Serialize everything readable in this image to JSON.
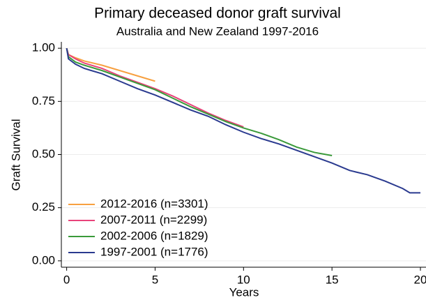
{
  "chart_data": {
    "type": "line",
    "title": "Primary deceased donor graft survival",
    "subtitle": "Australia and New Zealand 1997-2016",
    "x_label": "Years",
    "y_label": "Graft Survival",
    "xlim": [
      -0.3,
      20
    ],
    "xticks": [
      0,
      5,
      10,
      15,
      20
    ],
    "ylim": [
      -0.03,
      1.03
    ],
    "yticks": [
      {
        "value": 0,
        "label": "0.00"
      },
      {
        "value": 0.25,
        "label": "0.25"
      },
      {
        "value": 0.5,
        "label": "0.50"
      },
      {
        "value": 0.75,
        "label": "0.75"
      },
      {
        "value": 1,
        "label": "1.00"
      }
    ],
    "grid": true,
    "legend": "lower left",
    "series": [
      {
        "name": "2012-2016 (n=3301)",
        "color": "#f7a040",
        "x": [
          0,
          0.1,
          0.5,
          1,
          2,
          3,
          4,
          5
        ],
        "values": [
          1,
          0.97,
          0.955,
          0.94,
          0.92,
          0.895,
          0.87,
          0.845
        ]
      },
      {
        "name": "2007-2011 (n=2299)",
        "color": "#e8437a",
        "x": [
          0,
          0.1,
          0.5,
          1,
          2,
          3,
          4,
          5,
          6,
          7,
          8,
          9,
          10
        ],
        "values": [
          1,
          0.97,
          0.95,
          0.93,
          0.905,
          0.87,
          0.84,
          0.81,
          0.775,
          0.735,
          0.695,
          0.66,
          0.63
        ]
      },
      {
        "name": "2002-2006 (n=1829)",
        "color": "#3a9a3a",
        "x": [
          0,
          0.1,
          0.5,
          1,
          2,
          3,
          4,
          5,
          6,
          7,
          8,
          9,
          10,
          11,
          12,
          13,
          14,
          15
        ],
        "values": [
          1,
          0.96,
          0.935,
          0.92,
          0.895,
          0.865,
          0.835,
          0.805,
          0.765,
          0.725,
          0.69,
          0.655,
          0.625,
          0.6,
          0.57,
          0.535,
          0.51,
          0.495
        ]
      },
      {
        "name": "1997-2001 (n=1776)",
        "color": "#2a3a8f",
        "x": [
          0,
          0.1,
          0.5,
          1,
          2,
          3,
          4,
          5,
          6,
          7,
          8,
          9,
          10,
          11,
          12,
          13,
          14,
          15,
          16,
          17,
          18,
          19,
          19.4,
          20
        ],
        "values": [
          1,
          0.95,
          0.925,
          0.905,
          0.88,
          0.845,
          0.81,
          0.78,
          0.745,
          0.71,
          0.68,
          0.64,
          0.605,
          0.575,
          0.55,
          0.52,
          0.49,
          0.46,
          0.425,
          0.405,
          0.375,
          0.34,
          0.32,
          0.32
        ]
      }
    ]
  }
}
